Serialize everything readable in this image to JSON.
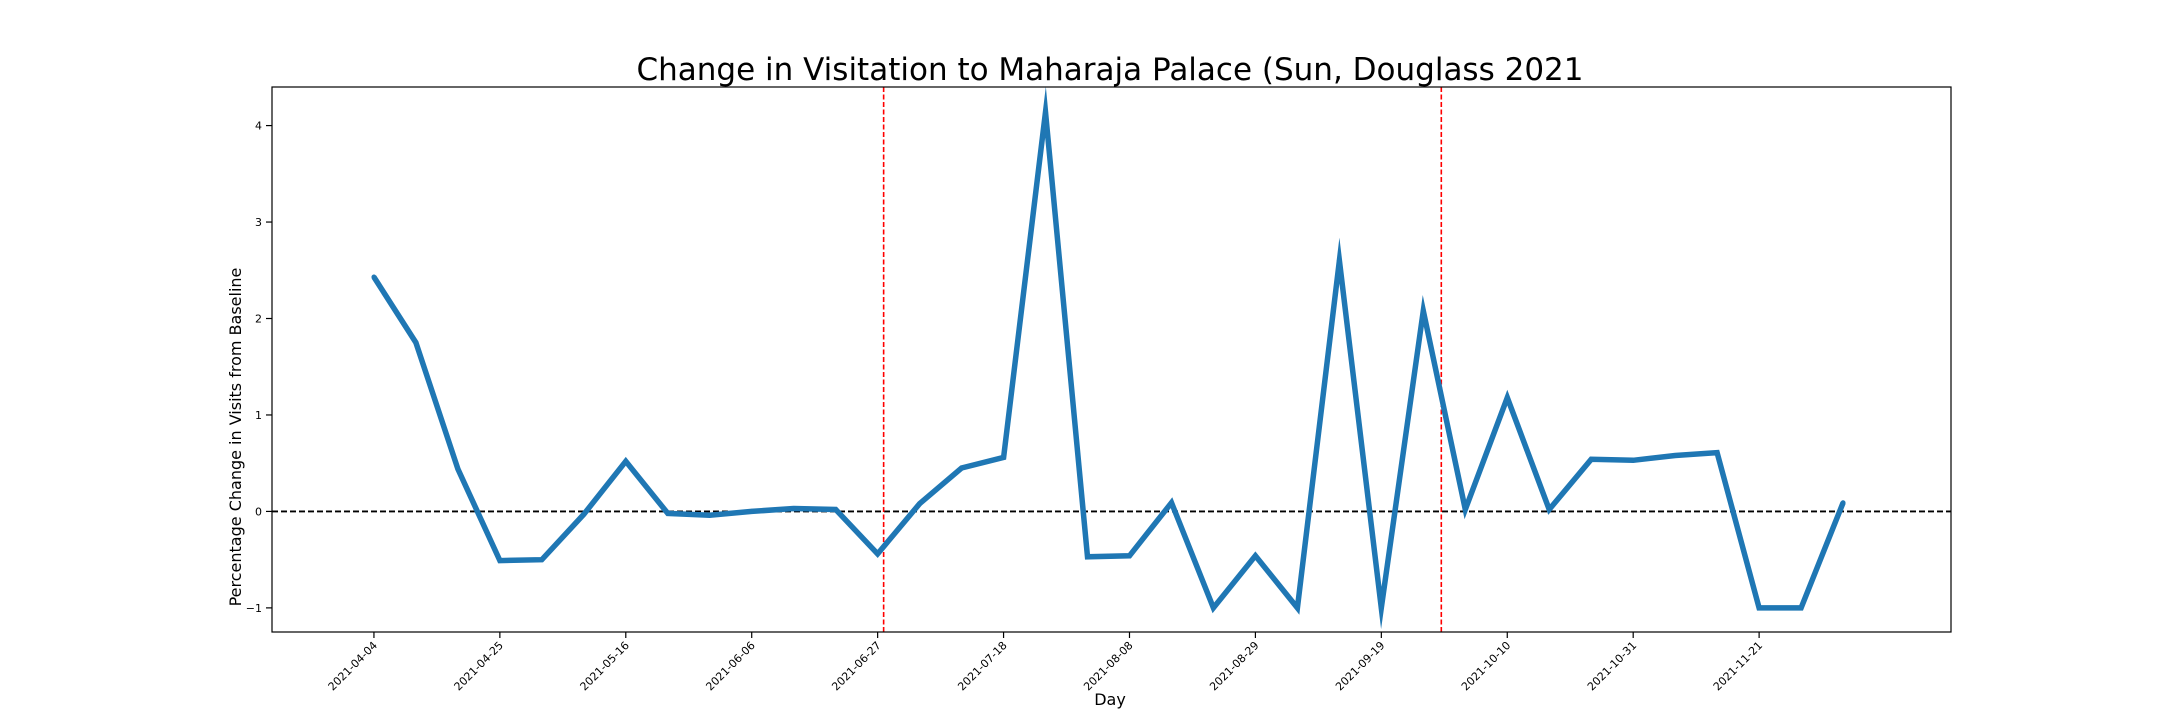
{
  "chart_data": {
    "type": "line",
    "title": "Change in Visitation to Maharaja Palace (Sun, Douglass 2021",
    "xlabel": "Day",
    "ylabel": "Percentage Change in Visits from Baseline",
    "x_range": [
      "2021-03-18",
      "2021-12-23"
    ],
    "ylim": [
      -1.25,
      4.4
    ],
    "y_ticks": [
      -1,
      0,
      1,
      2,
      3,
      4
    ],
    "x_ticks": [
      "2021-04-04",
      "2021-04-25",
      "2021-05-16",
      "2021-06-06",
      "2021-06-27",
      "2021-07-18",
      "2021-08-08",
      "2021-08-29",
      "2021-09-19",
      "2021-10-10",
      "2021-10-31",
      "2021-11-21"
    ],
    "grid": false,
    "legend": "none",
    "series": [
      {
        "color": "#1f77b4",
        "x": [
          "2021-04-04",
          "2021-04-11",
          "2021-04-18",
          "2021-04-25",
          "2021-05-02",
          "2021-05-09",
          "2021-05-16",
          "2021-05-23",
          "2021-05-30",
          "2021-06-06",
          "2021-06-13",
          "2021-06-20",
          "2021-06-27",
          "2021-07-04",
          "2021-07-11",
          "2021-07-18",
          "2021-07-25",
          "2021-08-01",
          "2021-08-08",
          "2021-08-15",
          "2021-08-22",
          "2021-08-29",
          "2021-09-05",
          "2021-09-12",
          "2021-09-19",
          "2021-09-26",
          "2021-10-03",
          "2021-10-10",
          "2021-10-17",
          "2021-10-24",
          "2021-10-31",
          "2021-11-07",
          "2021-11-14",
          "2021-11-21",
          "2021-11-28",
          "2021-12-05"
        ],
        "y": [
          2.43,
          1.75,
          0.44,
          -0.51,
          -0.5,
          -0.03,
          0.52,
          -0.02,
          -0.04,
          0.0,
          0.03,
          0.02,
          -0.44,
          0.08,
          0.45,
          0.56,
          4.14,
          -0.47,
          -0.46,
          0.09,
          -1.0,
          -0.46,
          -1.0,
          2.6,
          -1.0,
          2.08,
          0.02,
          1.18,
          0.02,
          0.54,
          0.53,
          0.58,
          0.61,
          -1.0,
          -1.0,
          0.09
        ]
      }
    ],
    "reference_lines": [
      {
        "orientation": "horizontal",
        "y": 0,
        "style": "dashed",
        "color": "#000000"
      },
      {
        "orientation": "vertical",
        "x": "2021-06-28",
        "style": "dashed",
        "color": "#ff0000"
      },
      {
        "orientation": "vertical",
        "x": "2021-09-29",
        "style": "dashed",
        "color": "#ff0000"
      }
    ]
  }
}
